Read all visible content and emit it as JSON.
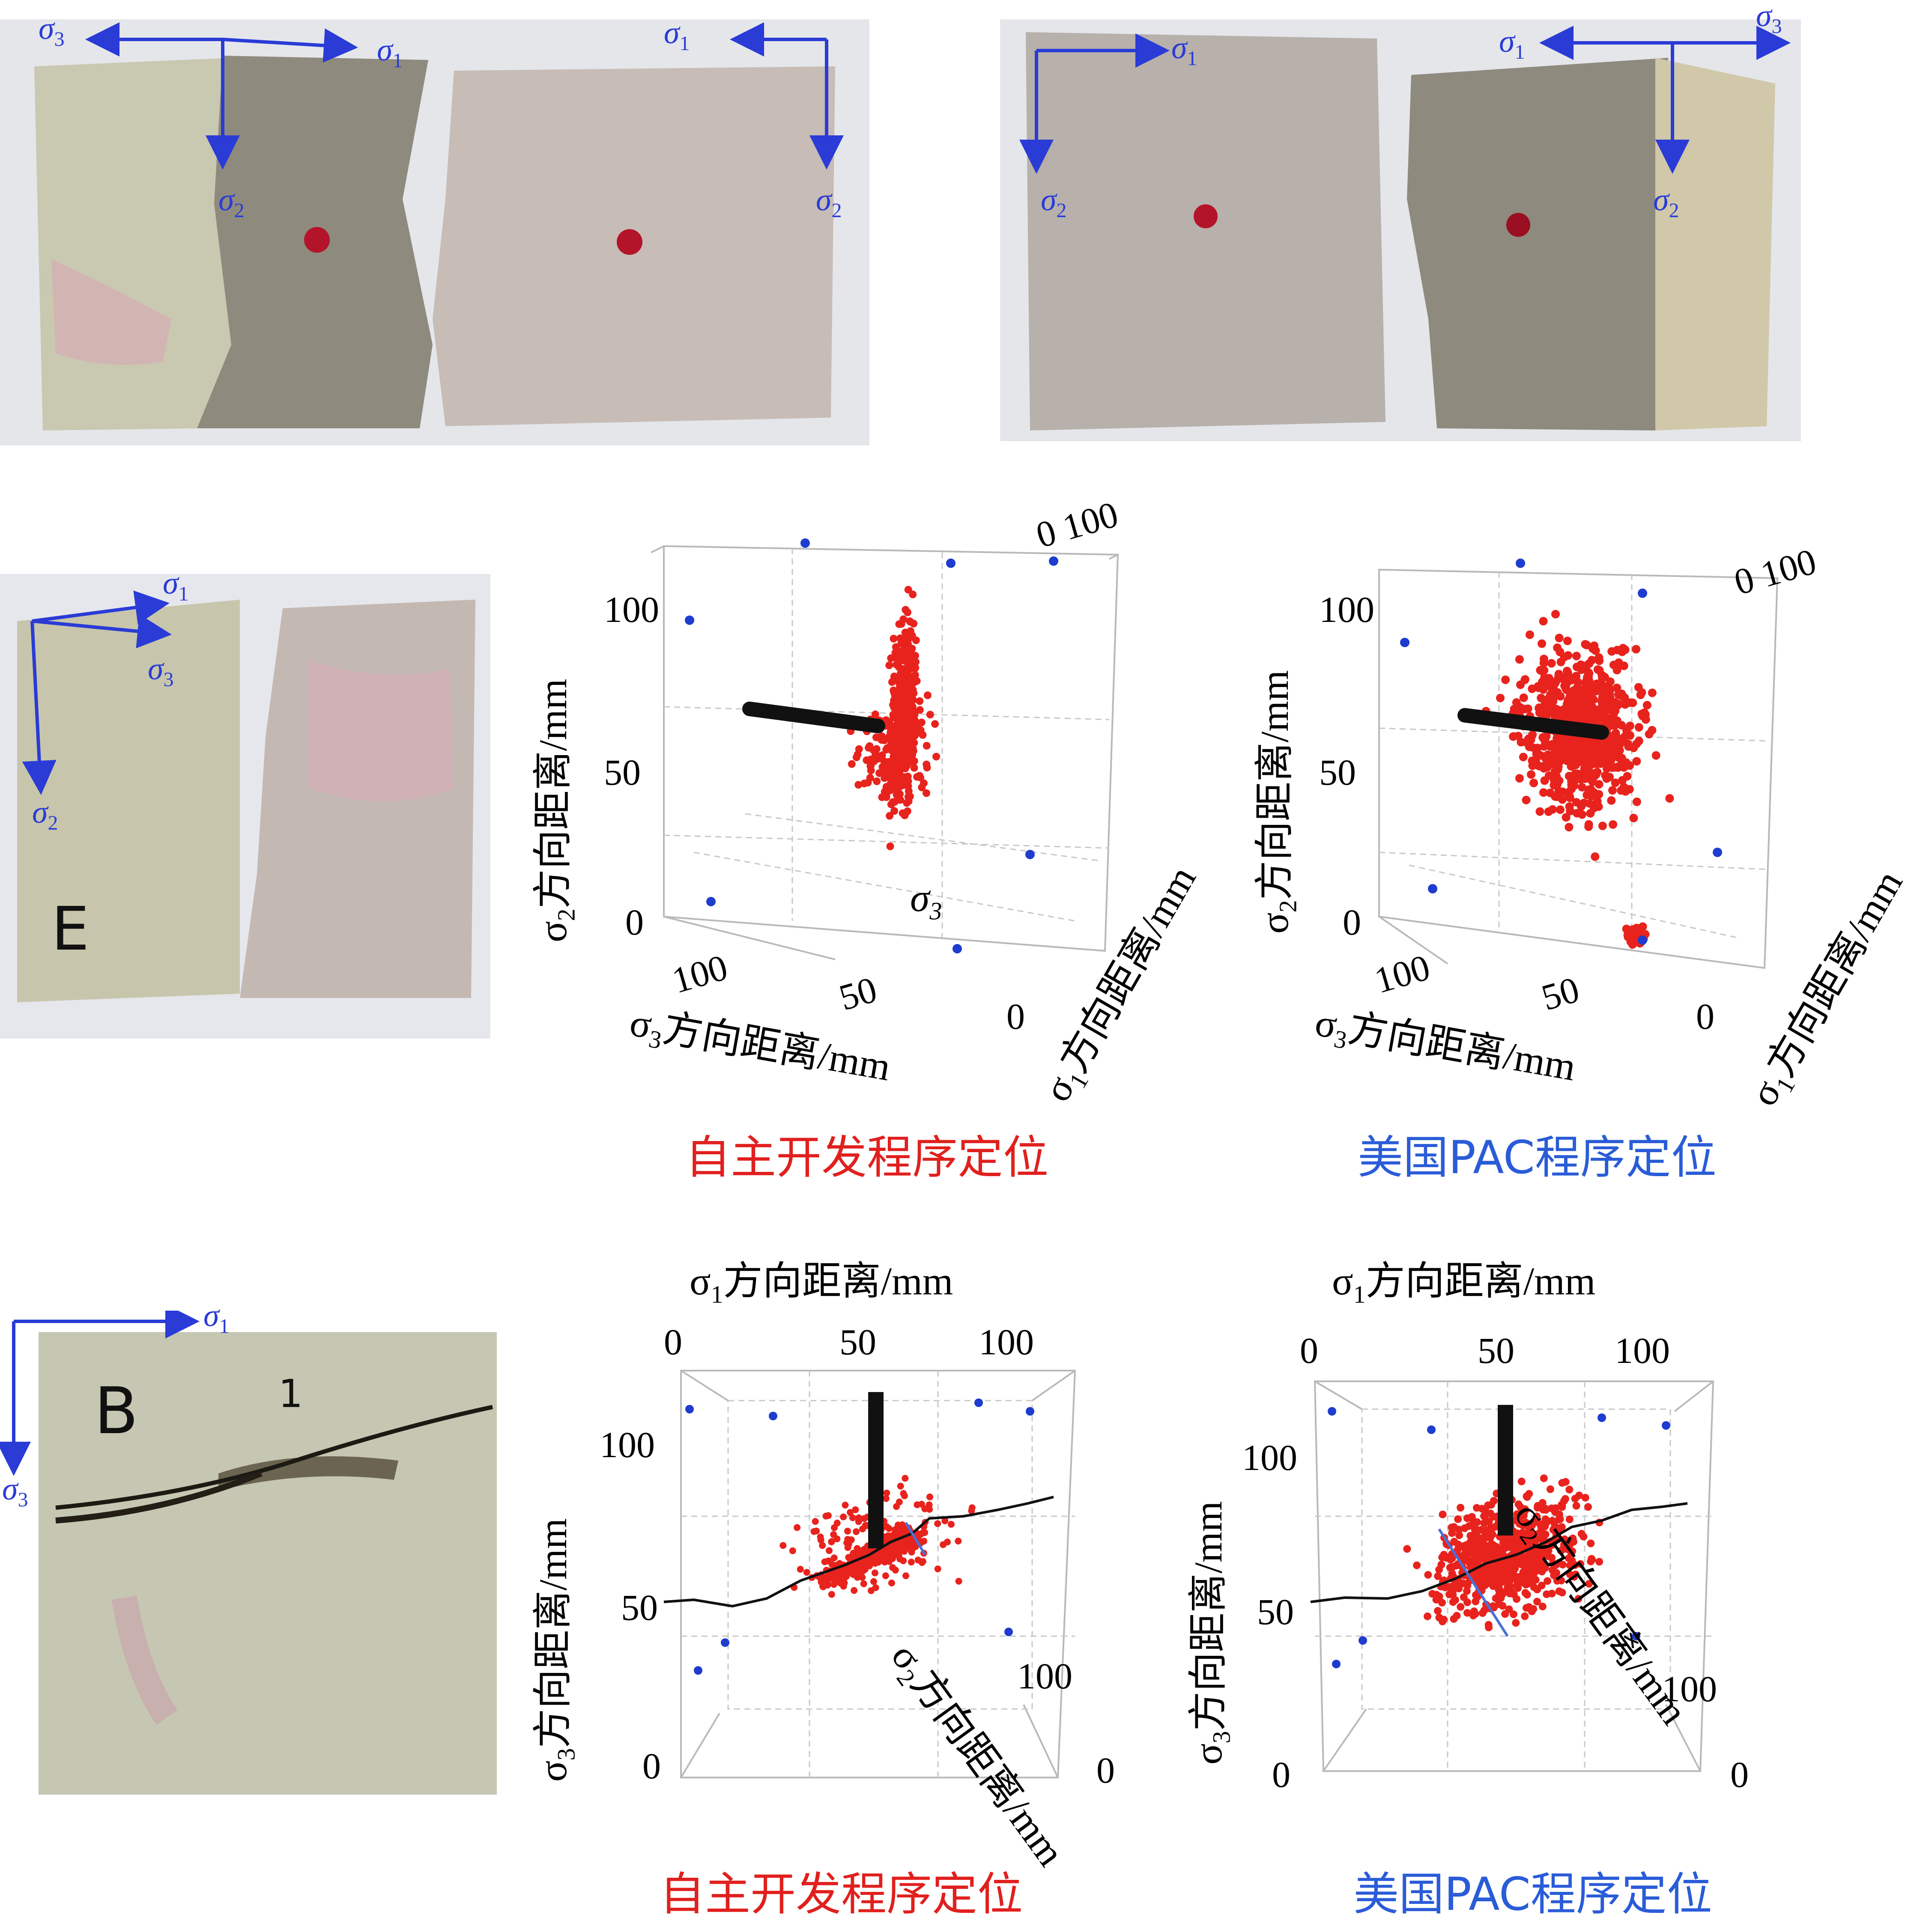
{
  "colors": {
    "caption_red": "#e0201e",
    "caption_blue": "#2a5cd8",
    "arrow_blue": "#2a3bd6",
    "point_red": "#e8231d",
    "point_blue": "#1e3ccf"
  },
  "greek": {
    "s1": "σ1",
    "s2": "σ2",
    "s3": "σ3"
  },
  "sigma": "σ",
  "sub1": "1",
  "sub2": "2",
  "sub3": "3",
  "photo_letters": {
    "e_mark": "E",
    "b_mark": "B",
    "one_mark": "1",
    "e_mark2": "E"
  },
  "row2": {
    "left_plot": {
      "y_axis": "方向距离/mm",
      "x_axis": "方向距离/mm",
      "z_axis": "方向距离/mm",
      "y_ticks": [
        "100",
        "50",
        "0"
      ],
      "x_ticks": [
        "100",
        "50",
        "0"
      ],
      "top_ticks": "0  100",
      "inner_label": "σ3",
      "caption": "自主开发程序定位"
    },
    "right_plot": {
      "y_axis": "方向距离/mm",
      "x_axis": "方向距离/mm",
      "z_axis": "方向距离/mm",
      "y_ticks": [
        "100",
        "50",
        "0"
      ],
      "x_ticks": [
        "100",
        "50",
        "0"
      ],
      "top_ticks": "0  100",
      "caption": "美国PAC程序定位"
    }
  },
  "row3": {
    "left_plot": {
      "top_axis": "方向距离/mm",
      "y_axis": "方向距离/mm",
      "diag_axis": "方向距离/mm",
      "top_ticks": [
        "0",
        "50",
        "100"
      ],
      "y_ticks": [
        "100",
        "50",
        "0"
      ],
      "right_ticks": [
        "100",
        "0"
      ],
      "caption": "自主开发程序定位"
    },
    "right_plot": {
      "top_axis": "方向距离/mm",
      "y_axis": "方向距离/mm",
      "diag_axis": "方向距离/mm",
      "top_ticks": [
        "0",
        "50",
        "100"
      ],
      "y_ticks": [
        "100",
        "50",
        "0"
      ],
      "right_ticks": [
        "100",
        "0"
      ],
      "caption": "美国PAC程序定位"
    }
  }
}
